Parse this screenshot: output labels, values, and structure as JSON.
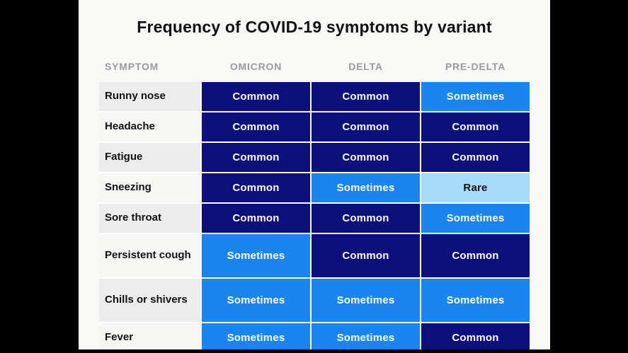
{
  "title": "Frequency of COVID-19 symptoms by variant",
  "symptom_column_header": "SYMPTOM",
  "chart_data": {
    "type": "heatmap",
    "title": "Frequency of COVID-19 symptoms by variant",
    "columns": [
      "OMICRON",
      "DELTA",
      "PRE-DELTA"
    ],
    "rows": [
      "Runny nose",
      "Headache",
      "Fatigue",
      "Sneezing",
      "Sore throat",
      "Persistent cough",
      "Chills or shivers",
      "Fever"
    ],
    "values": [
      [
        "Common",
        "Common",
        "Sometimes"
      ],
      [
        "Common",
        "Common",
        "Common"
      ],
      [
        "Common",
        "Common",
        "Common"
      ],
      [
        "Common",
        "Sometimes",
        "Rare"
      ],
      [
        "Common",
        "Common",
        "Sometimes"
      ],
      [
        "Sometimes",
        "Common",
        "Common"
      ],
      [
        "Sometimes",
        "Sometimes",
        "Sometimes"
      ],
      [
        "Sometimes",
        "Sometimes",
        "Common"
      ]
    ],
    "scale_levels": [
      "Rare",
      "Sometimes",
      "Common"
    ],
    "legend_position": "none",
    "grid": false
  },
  "colors": {
    "frequency_levels": {
      "Common": {
        "bg": "#0c107c",
        "text": "#ffffff"
      },
      "Sometimes": {
        "bg": "#1a85f0",
        "text": "#ffffff"
      },
      "Rare": {
        "bg": "#a7dbfa",
        "text": "#121212"
      }
    },
    "symptom_cell_alternating": [
      "#ececec",
      "#f6f6f5"
    ],
    "header_text": "#9b9b9b",
    "slide_background": "#f8f8f7",
    "letterbox": "#000000"
  }
}
